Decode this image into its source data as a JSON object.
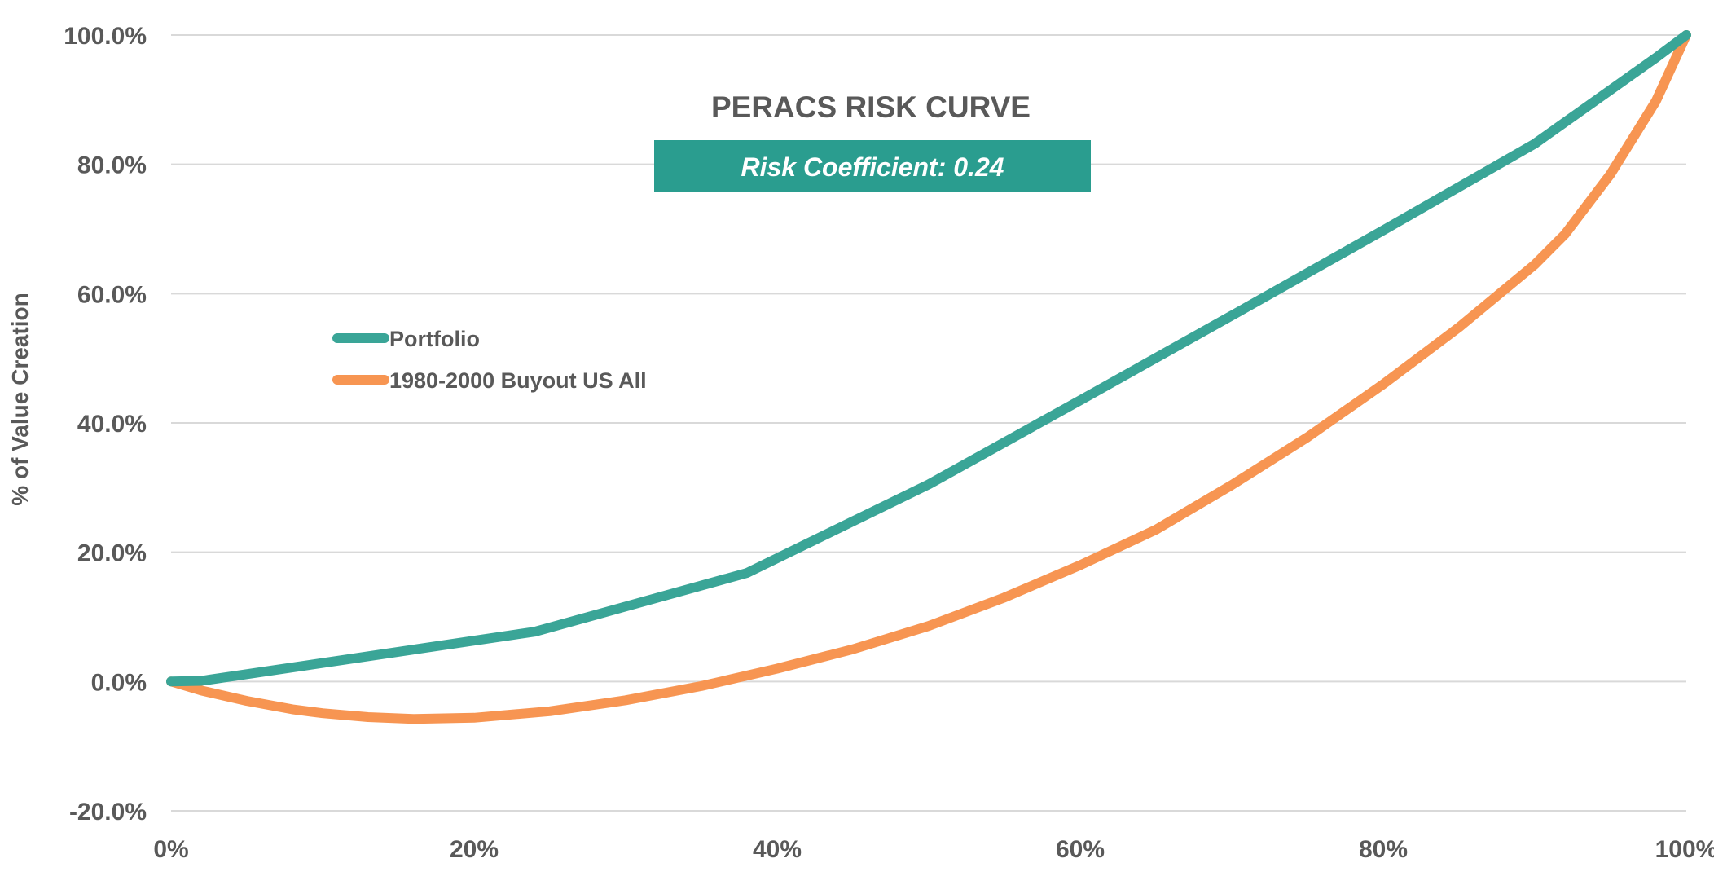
{
  "chart_data": {
    "type": "line",
    "title": "PERACS RISK CURVE",
    "annotation": "Risk Coefficient: 0.24",
    "ylabel": "% of Value Creation",
    "xlabel": "",
    "xlim": [
      0,
      100
    ],
    "ylim": [
      -20,
      100
    ],
    "x_ticks": [
      0,
      20,
      40,
      60,
      80,
      100
    ],
    "x_tick_labels": [
      "0%",
      "20%",
      "40%",
      "60%",
      "80%",
      "100%"
    ],
    "y_ticks": [
      -20,
      0,
      20,
      40,
      60,
      80,
      100
    ],
    "y_tick_labels": [
      "-20.0%",
      "0.0%",
      "20.0%",
      "40.0%",
      "60.0%",
      "80.0%",
      "100.0%"
    ],
    "grid": true,
    "legend_position": "left-center",
    "series": [
      {
        "name": "Portfolio",
        "color": "#3aa597",
        "points": [
          [
            0,
            0
          ],
          [
            2,
            0.1
          ],
          [
            24,
            7.7
          ],
          [
            38,
            16.8
          ],
          [
            50,
            30.5
          ],
          [
            60,
            43.5
          ],
          [
            70,
            56.6
          ],
          [
            80,
            69.8
          ],
          [
            90,
            83.2
          ],
          [
            98,
            96.5
          ],
          [
            100,
            100
          ]
        ]
      },
      {
        "name": "1980-2000 Buyout US All",
        "color": "#f79552",
        "points": [
          [
            0,
            0
          ],
          [
            2,
            -1.4
          ],
          [
            5,
            -3.0
          ],
          [
            8,
            -4.3
          ],
          [
            10,
            -4.9
          ],
          [
            13,
            -5.5
          ],
          [
            16,
            -5.8
          ],
          [
            20,
            -5.6
          ],
          [
            25,
            -4.6
          ],
          [
            30,
            -2.9
          ],
          [
            35,
            -0.7
          ],
          [
            40,
            2.0
          ],
          [
            45,
            5.0
          ],
          [
            50,
            8.6
          ],
          [
            55,
            13.0
          ],
          [
            60,
            18.0
          ],
          [
            65,
            23.5
          ],
          [
            70,
            30.4
          ],
          [
            75,
            37.8
          ],
          [
            80,
            46.0
          ],
          [
            85,
            54.8
          ],
          [
            90,
            64.5
          ],
          [
            92,
            69.2
          ],
          [
            95,
            78.5
          ],
          [
            98,
            89.8
          ],
          [
            100,
            100
          ]
        ]
      }
    ]
  },
  "badge_color": "#2a9d8f"
}
